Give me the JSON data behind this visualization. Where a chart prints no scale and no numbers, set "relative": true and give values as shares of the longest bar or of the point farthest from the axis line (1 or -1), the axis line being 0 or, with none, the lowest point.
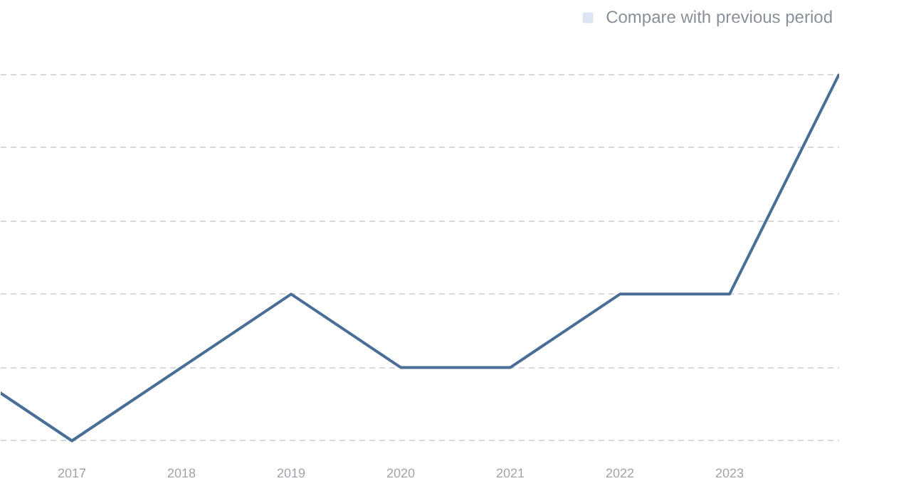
{
  "chart_data": {
    "type": "line",
    "relative": true,
    "categories": [
      null,
      "2017",
      "2018",
      "2019",
      "2020",
      "2021",
      "2022",
      "2023",
      null
    ],
    "series": [
      {
        "color": "#4a6f96",
        "values": [
          0.2,
          0,
          0.2,
          0.4,
          0.2,
          0.2,
          0.4,
          0.4,
          1
        ]
      },
      {
        "name": "Compare with previous period",
        "color": "#dce6f2",
        "values": [
          null,
          null,
          null,
          null,
          null,
          null,
          null,
          null,
          null
        ]
      }
    ],
    "grid": "y",
    "legend": "top right",
    "marker": "none",
    "line_style": "solid"
  }
}
